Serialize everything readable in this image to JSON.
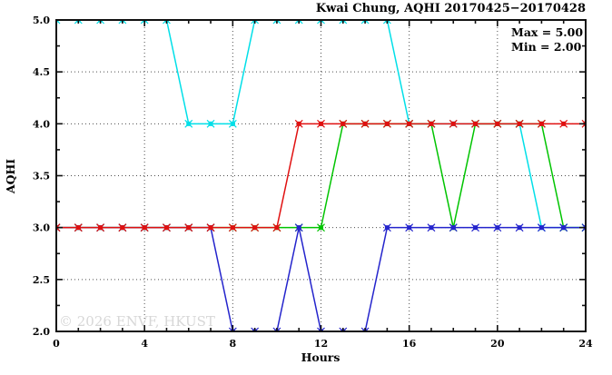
{
  "figure": {
    "title": "Kwai Chung, AQHI 20170425−20170428",
    "legend": {
      "max": "Max = 5.00",
      "min": "Min = 2.00"
    },
    "watermark": "© 2026 ENVF, HKUST",
    "xlabel": "Hours",
    "ylabel": "AQHI"
  },
  "chart_data": {
    "type": "line",
    "title": "Kwai Chung, AQHI 20170425−20170428",
    "xlabel": "Hours",
    "ylabel": "AQHI",
    "xlim": [
      0,
      24
    ],
    "ylim": [
      2.0,
      5.0
    ],
    "x_major_ticks": [
      0,
      4,
      8,
      12,
      16,
      20,
      24
    ],
    "x_minor_step": 1,
    "y_major_ticks": [
      2.0,
      2.5,
      3.0,
      3.5,
      4.0,
      4.5,
      5.0
    ],
    "y_minor_step": 0.25,
    "grid": "dotted",
    "grid_color": "#4d4d4d",
    "frame_color": "#111111",
    "legend_position": "top-right-inside",
    "annotations": [
      "Max = 5.00",
      "Min = 2.00"
    ],
    "marker": "square-x",
    "x": [
      0,
      1,
      2,
      3,
      4,
      5,
      6,
      7,
      8,
      9,
      10,
      11,
      12,
      13,
      14,
      15,
      16,
      17,
      18,
      19,
      20,
      21,
      22,
      23,
      24
    ],
    "series": [
      {
        "name": "cyan-series",
        "color": "#00dfe8",
        "values": [
          5,
          5,
          5,
          5,
          5,
          5,
          4,
          4,
          4,
          5,
          5,
          5,
          5,
          5,
          5,
          5,
          4,
          4,
          4,
          4,
          4,
          4,
          3,
          3,
          3
        ]
      },
      {
        "name": "green-series",
        "color": "#00c400",
        "values": [
          3,
          3,
          3,
          3,
          3,
          3,
          3,
          3,
          3,
          3,
          3,
          3,
          3,
          4,
          4,
          4,
          4,
          4,
          3,
          4,
          4,
          4,
          4,
          3,
          3
        ]
      },
      {
        "name": "blue-series",
        "color": "#2424cc",
        "values": [
          3,
          3,
          3,
          3,
          3,
          3,
          3,
          3,
          2,
          2,
          2,
          3,
          2,
          2,
          2,
          3,
          3,
          3,
          3,
          3,
          3,
          3,
          3,
          3,
          3
        ]
      },
      {
        "name": "red-series",
        "color": "#e01010",
        "values": [
          3,
          3,
          3,
          3,
          3,
          3,
          3,
          3,
          3,
          3,
          3,
          4,
          4,
          4,
          4,
          4,
          4,
          4,
          4,
          4,
          4,
          4,
          4,
          4,
          4
        ]
      }
    ]
  }
}
